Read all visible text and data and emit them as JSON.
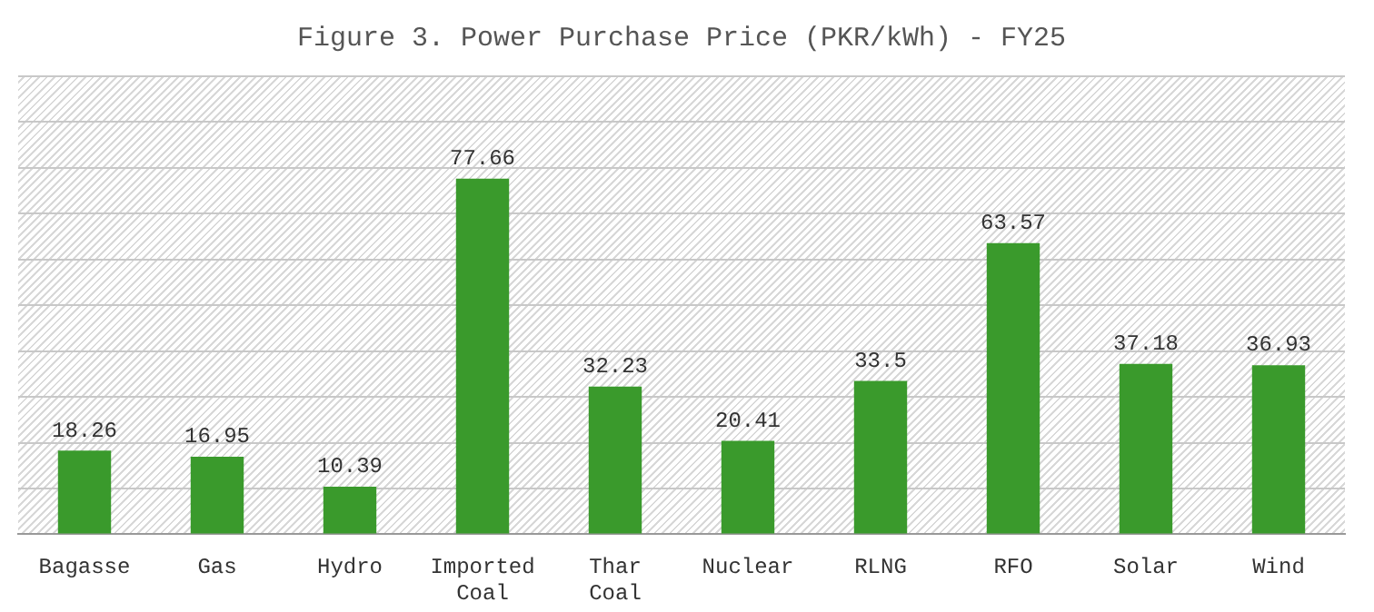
{
  "chart_data": {
    "type": "bar",
    "title": "Figure 3. Power Purchase Price (PKR/kWh) - FY25",
    "categories": [
      "Bagasse",
      "Gas",
      "Hydro",
      "Imported Coal",
      "Thar Coal",
      "Nuclear",
      "RLNG",
      "RFO",
      "Solar",
      "Wind"
    ],
    "values": [
      18.26,
      16.95,
      10.39,
      77.66,
      32.23,
      20.41,
      33.5,
      63.57,
      37.18,
      36.93
    ],
    "color": "#3a9a2c",
    "ylim": [
      0,
      100
    ],
    "yticks": [
      {
        "value": 0,
        "label": null
      },
      {
        "value": 10,
        "label": null
      },
      {
        "value": 20,
        "label": null
      },
      {
        "value": 30,
        "label": null
      },
      {
        "value": 40,
        "label": null
      },
      {
        "value": 50,
        "label": null
      },
      {
        "value": 60,
        "label": null
      },
      {
        "value": 70,
        "label": null
      },
      {
        "value": 80,
        "label": null
      },
      {
        "value": 90,
        "label": null
      },
      {
        "value": 100,
        "label": null
      }
    ],
    "grid": "y",
    "tick_labels": "x",
    "data_labels": true,
    "legend": false
  }
}
